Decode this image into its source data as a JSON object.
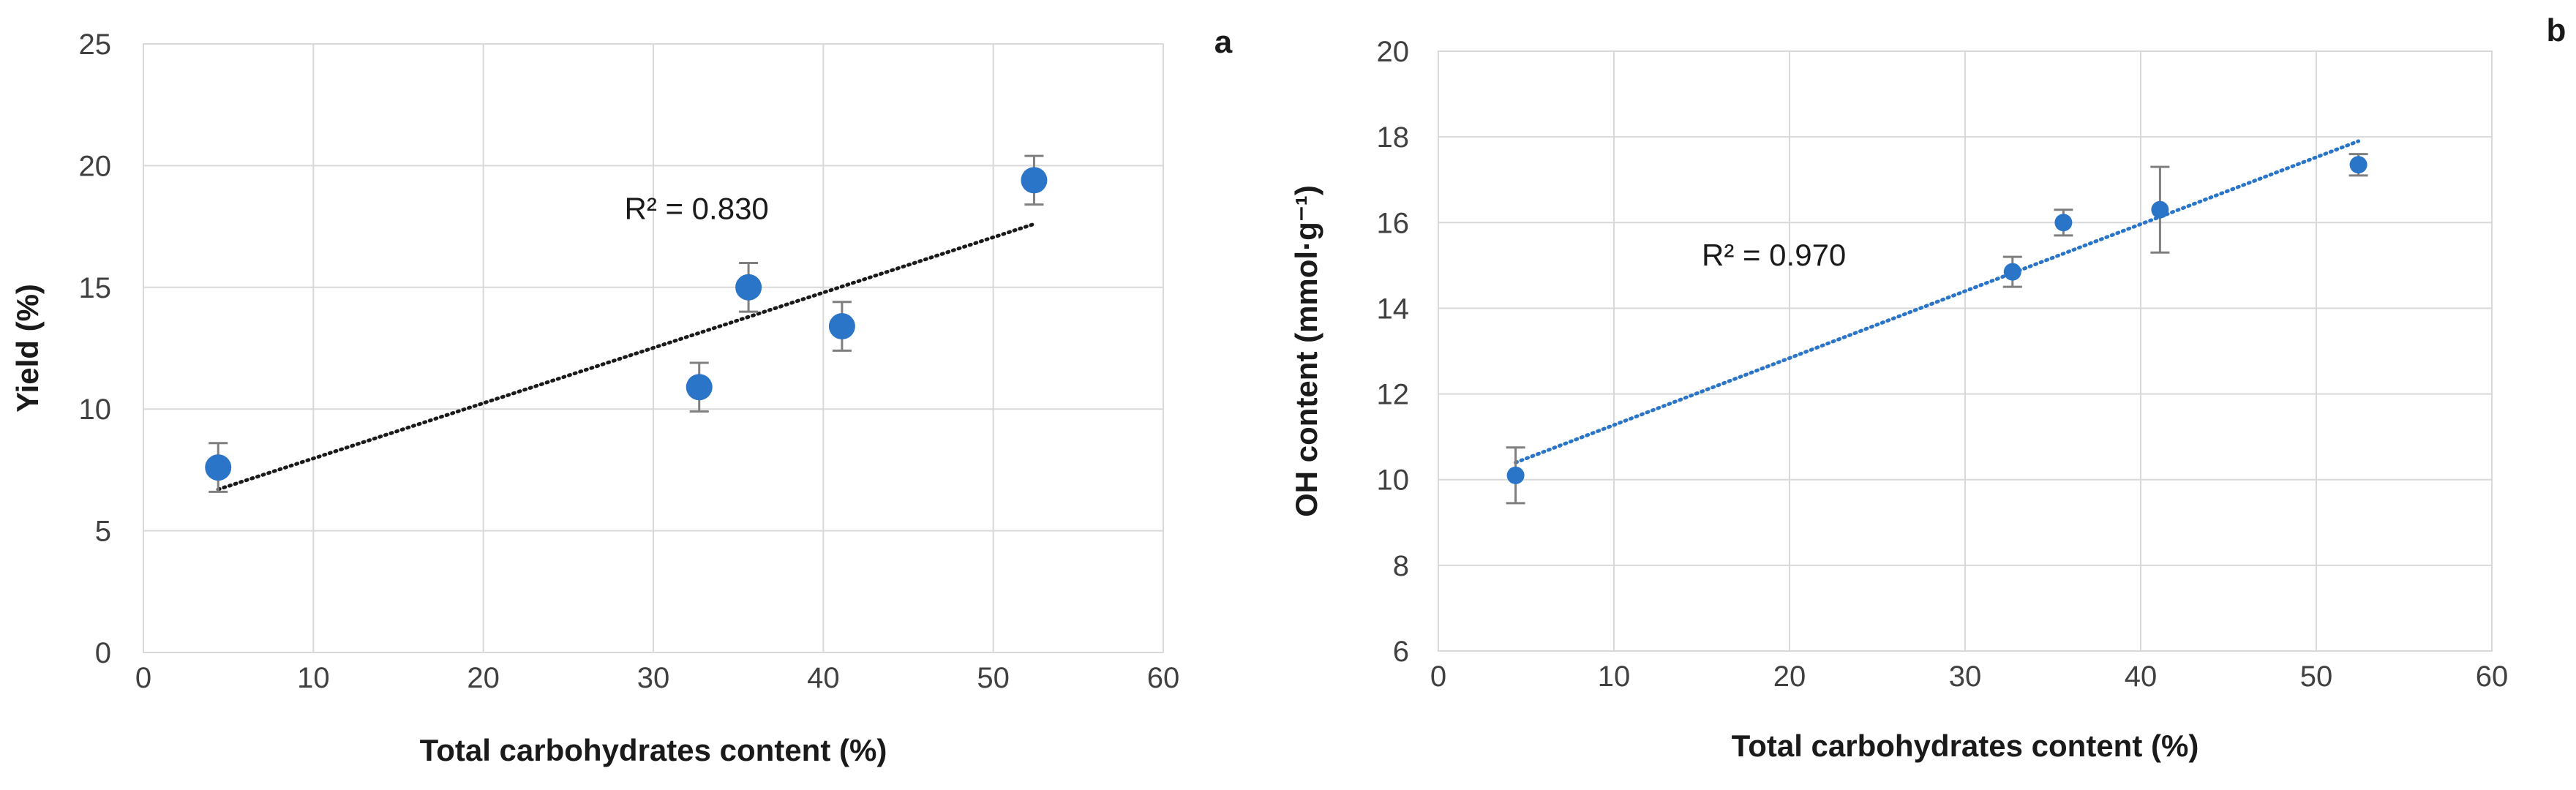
{
  "chart_data": [
    {
      "type": "scatter",
      "panel_label": "a",
      "xlabel": "Total carbohydrates content (%)",
      "ylabel": "Yield (%)",
      "xlim": [
        0,
        60
      ],
      "ylim": [
        0,
        25
      ],
      "xticks": [
        "0",
        "10",
        "20",
        "30",
        "40",
        "50",
        "60"
      ],
      "yticks": [
        "0",
        "5",
        "10",
        "15",
        "20",
        "25"
      ],
      "grid": true,
      "marker_color": "#2a75c7",
      "trendline_color": "#1a1a1a",
      "series": [
        {
          "name": "Yield",
          "x": [
            4.4,
            32.7,
            35.6,
            41.1,
            52.4
          ],
          "y": [
            7.6,
            10.9,
            15.0,
            13.4,
            19.4
          ],
          "error": [
            1.0,
            1.0,
            1.0,
            1.0,
            1.0
          ]
        }
      ],
      "trendline": {
        "x": [
          4.4,
          52.4
        ],
        "y": [
          6.7,
          17.6
        ]
      },
      "annotation": {
        "text": "R² = 0.830",
        "x": 28.3,
        "y": 17.8
      }
    },
    {
      "type": "scatter",
      "panel_label": "b",
      "xlabel": "Total carbohydrates content (%)",
      "ylabel": "OH content (mmol·g⁻¹)",
      "xlim": [
        0,
        60
      ],
      "ylim": [
        6,
        20
      ],
      "xticks": [
        "0",
        "10",
        "20",
        "30",
        "40",
        "50",
        "60"
      ],
      "yticks": [
        "6",
        "8",
        "10",
        "12",
        "14",
        "16",
        "18",
        "20"
      ],
      "grid": true,
      "marker_color": "#2a75c7",
      "trendline_color": "#2a75c7",
      "series": [
        {
          "name": "OH content",
          "x": [
            4.4,
            32.7,
            35.6,
            41.1,
            52.4
          ],
          "y": [
            10.1,
            14.85,
            16.0,
            16.3,
            17.35
          ],
          "error": [
            0.65,
            0.35,
            0.3,
            1.0,
            0.25
          ]
        }
      ],
      "trendline": {
        "x": [
          4.4,
          52.4
        ],
        "y": [
          10.4,
          17.9
        ]
      },
      "annotation": {
        "text": "R² = 0.970",
        "x": 15.0,
        "y": 15.0
      }
    }
  ]
}
